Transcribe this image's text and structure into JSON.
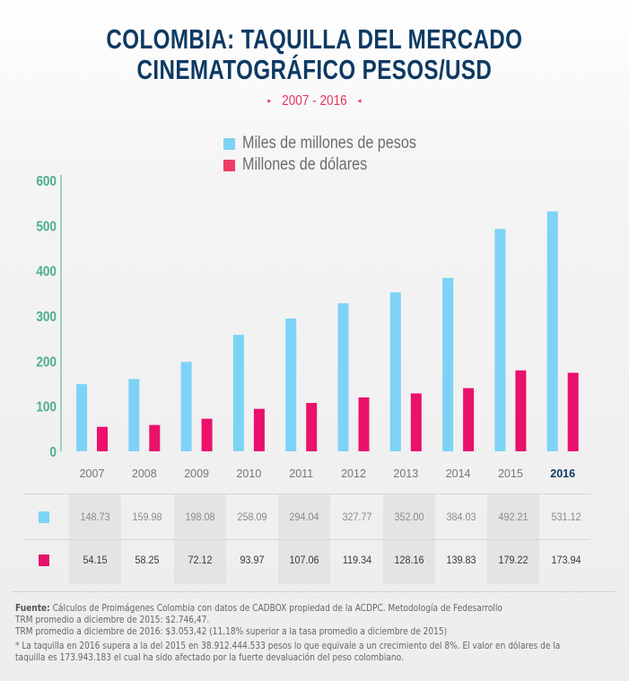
{
  "header": {
    "title_line1": "COLOMBIA: TAQUILLA DEL MERCADO",
    "title_line2": "CINEMATOGRÁFICO PESOS/USD",
    "subtitle": "2007 - 2016",
    "subtitle_left_marker": "▸",
    "subtitle_right_marker": "◂"
  },
  "chart_data": {
    "type": "bar",
    "title": "COLOMBIA: TAQUILLA DEL MERCADO CINEMATOGRÁFICO PESOS/USD",
    "subtitle": "2007 - 2016",
    "categories": [
      "2007",
      "2008",
      "2009",
      "2010",
      "2011",
      "2012",
      "2013",
      "2014",
      "2015",
      "2016"
    ],
    "highlighted_category": "2016",
    "series": [
      {
        "name": "Miles de millones de pesos",
        "color": "#7dd3f6",
        "values": [
          148.73,
          159.98,
          198.08,
          258.09,
          294.04,
          327.77,
          352.0,
          384.03,
          492.21,
          531.12
        ]
      },
      {
        "name": "Millones de dólares",
        "color": "#ea106b",
        "values": [
          54.15,
          58.25,
          72.12,
          93.97,
          107.06,
          119.34,
          128.16,
          139.83,
          179.22,
          173.94
        ]
      }
    ],
    "yticks": [
      0,
      100,
      200,
      300,
      400,
      500,
      600
    ],
    "ylim": [
      0,
      600
    ],
    "xlabel": "",
    "ylabel": "",
    "grid": false,
    "legend_position": "top-center",
    "axis_color": "#4caf8a",
    "ytick_color": "#4caf8a",
    "xtick_color": "#777777",
    "highlight_color": "#0d3a63"
  },
  "table": {
    "rows": [
      {
        "series": "Miles de millones de pesos",
        "color": "#7dd3f6",
        "cells": [
          "148.73",
          "159.98",
          "198.08",
          "258.09",
          "294.04",
          "327.77",
          "352.00",
          "384.03",
          "492.21",
          "531.12"
        ]
      },
      {
        "series": "Millones de dólares",
        "color": "#ea106b",
        "cells": [
          "54.15",
          "58.25",
          "72.12",
          "93.97",
          "107.06",
          "119.34",
          "128.16",
          "139.83",
          "179.22",
          "173.94"
        ]
      }
    ]
  },
  "notes": {
    "source_label": "Fuente:",
    "source_text": " Cálculos de Proimágenes Colombia con datos de CADBOX propiedad de la ACDPC. Metodología de Fedesarrollo",
    "trm_2015": "TRM promedio a diciembre de 2015: $2.746,47.",
    "trm_2016": "TRM promedio a diciembre de 2016: $3.053,42 (11,18% superior a la tasa promedio a diciembre de 2015)",
    "footnote_line1": "* La taquilla en 2016 supera a la del 2015 en 38.912.444.533 pesos lo que equivale a un crecimiento del 8%. El valor en dólares de la",
    "footnote_line2": "taquilla es 173.943.183 el cual ha sido afectado por la fuerte devaluación del peso colombiano."
  }
}
